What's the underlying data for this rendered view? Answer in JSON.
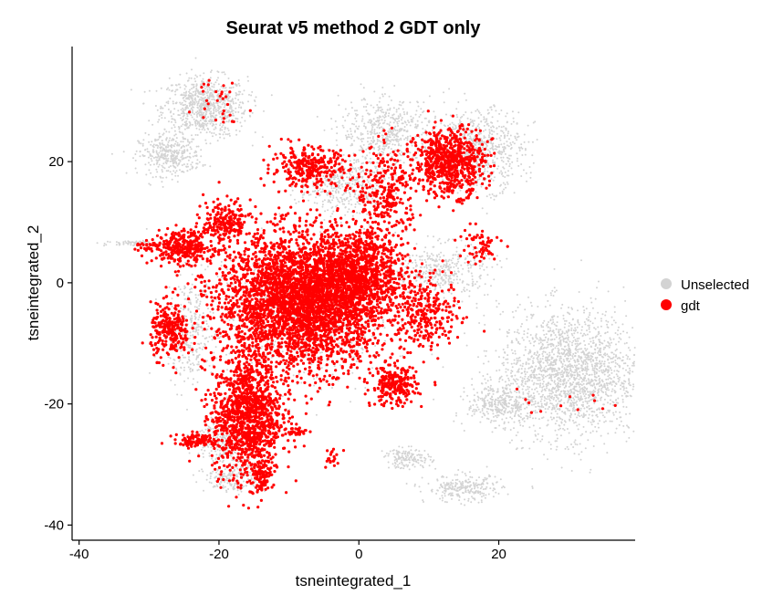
{
  "chart_data": {
    "type": "scatter",
    "title": "Seurat v5 method 2 GDT only",
    "xlabel": "tsneintegrated_1",
    "ylabel": "tsneintegrated_2",
    "xlim": [
      -41,
      39.5
    ],
    "ylim": [
      -42.5,
      39
    ],
    "x_ticks": [
      -40,
      -20,
      0,
      20
    ],
    "y_ticks": [
      -40,
      -20,
      0,
      20
    ],
    "grid": false,
    "legend_position": "right",
    "series": [
      {
        "name": "Unselected",
        "color": "#d3d3d3",
        "point_size": 1.0,
        "clusters": [
          {
            "cx": -22,
            "cy": 29,
            "rx": 5.5,
            "ry": 4.5,
            "n": 800
          },
          {
            "cx": -27,
            "cy": 21,
            "rx": 4.0,
            "ry": 3.0,
            "n": 350
          },
          {
            "cx": 30,
            "cy": -15,
            "rx": 9.0,
            "ry": 9.5,
            "n": 2000
          },
          {
            "cx": 20,
            "cy": -20,
            "rx": 4.0,
            "ry": 3.0,
            "n": 300
          },
          {
            "cx": 17,
            "cy": 22,
            "rx": 6.0,
            "ry": 6.0,
            "n": 700
          },
          {
            "cx": 4,
            "cy": 25,
            "rx": 6.0,
            "ry": 5.0,
            "n": 500
          },
          {
            "cx": 15,
            "cy": -34,
            "rx": 5.0,
            "ry": 2.0,
            "n": 250
          },
          {
            "cx": 7,
            "cy": -29,
            "rx": 3.0,
            "ry": 1.5,
            "n": 150
          },
          {
            "cx": -24,
            "cy": -8,
            "rx": 3.0,
            "ry": 8.0,
            "n": 300
          },
          {
            "cx": -20,
            "cy": -26,
            "rx": 3.0,
            "ry": 3.0,
            "n": 200
          },
          {
            "cx": 12,
            "cy": 2,
            "rx": 6.0,
            "ry": 4.0,
            "n": 400
          },
          {
            "cx": -2,
            "cy": 16,
            "rx": 6.0,
            "ry": 4.0,
            "n": 400
          },
          {
            "cx": -18,
            "cy": -32,
            "rx": 3.5,
            "ry": 2.5,
            "n": 200
          },
          {
            "cx": -8,
            "cy": -5,
            "rx": 12.0,
            "ry": 12.0,
            "n": 700
          },
          {
            "cx": -32,
            "cy": 6.5,
            "rx": 4.0,
            "ry": 0.4,
            "n": 70
          }
        ]
      },
      {
        "name": "gdt",
        "color": "#ff0000",
        "point_size": 1.6,
        "clusters": [
          {
            "cx": -8,
            "cy": -3,
            "rx": 11.0,
            "ry": 10.0,
            "n": 3800
          },
          {
            "cx": 0,
            "cy": 2,
            "rx": 6.0,
            "ry": 6.0,
            "n": 800
          },
          {
            "cx": -16,
            "cy": -22,
            "rx": 4.5,
            "ry": 9.0,
            "n": 1200
          },
          {
            "cx": -27,
            "cy": -8,
            "rx": 2.5,
            "ry": 4.0,
            "n": 250
          },
          {
            "cx": -25,
            "cy": 6,
            "rx": 4.0,
            "ry": 2.5,
            "n": 300
          },
          {
            "cx": -19,
            "cy": 10,
            "rx": 3.0,
            "ry": 3.0,
            "n": 200
          },
          {
            "cx": 13,
            "cy": 20,
            "rx": 4.5,
            "ry": 5.0,
            "n": 700
          },
          {
            "cx": -7,
            "cy": 19,
            "rx": 5.0,
            "ry": 3.0,
            "n": 300
          },
          {
            "cx": 4,
            "cy": 15,
            "rx": 4.0,
            "ry": 7.0,
            "n": 300
          },
          {
            "cx": 5,
            "cy": -17,
            "rx": 3.0,
            "ry": 3.0,
            "n": 250
          },
          {
            "cx": 10,
            "cy": -5,
            "rx": 4.0,
            "ry": 5.0,
            "n": 250
          },
          {
            "cx": -23,
            "cy": -26,
            "rx": 3.0,
            "ry": 1.0,
            "n": 100
          },
          {
            "cx": -14,
            "cy": -32,
            "rx": 1.5,
            "ry": 2.5,
            "n": 100
          },
          {
            "cx": -20,
            "cy": 31,
            "rx": 3.0,
            "ry": 4.0,
            "n": 30
          },
          {
            "cx": 28,
            "cy": -20,
            "rx": 6.0,
            "ry": 5.0,
            "n": 12
          },
          {
            "cx": -9,
            "cy": -24.5,
            "rx": 1.5,
            "ry": 0.6,
            "n": 25
          },
          {
            "cx": -4,
            "cy": -29,
            "rx": 1.0,
            "ry": 2.0,
            "n": 20
          },
          {
            "cx": 17,
            "cy": 6,
            "rx": 3.0,
            "ry": 3.0,
            "n": 60
          },
          {
            "cx": -30,
            "cy": 6,
            "rx": 2.0,
            "ry": 0.8,
            "n": 30
          }
        ]
      }
    ]
  }
}
